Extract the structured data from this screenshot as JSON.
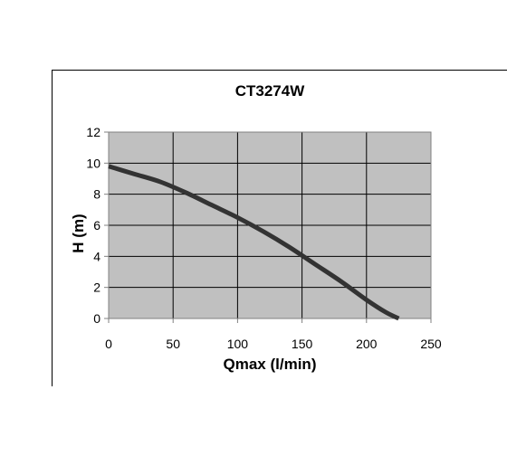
{
  "chart_data": {
    "type": "line",
    "title": "CT3274W",
    "xlabel": "Qmax (l/min)",
    "ylabel": "H (m)",
    "xlim": [
      0,
      250
    ],
    "ylim": [
      0,
      12
    ],
    "xticks": [
      "0",
      "50",
      "100",
      "150",
      "200",
      "250"
    ],
    "yticks": [
      "0",
      "2",
      "4",
      "6",
      "8",
      "10",
      "12"
    ],
    "grid": true,
    "legend": "none",
    "plot_background": "#c0c0c0",
    "series": [
      {
        "color": "#333333",
        "x": [
          0,
          20,
          40,
          60,
          80,
          100,
          120,
          140,
          160,
          180,
          200,
          215,
          225
        ],
        "y": [
          9.8,
          9.3,
          8.8,
          8.1,
          7.3,
          6.5,
          5.6,
          4.6,
          3.5,
          2.4,
          1.2,
          0.4,
          0
        ]
      }
    ]
  }
}
